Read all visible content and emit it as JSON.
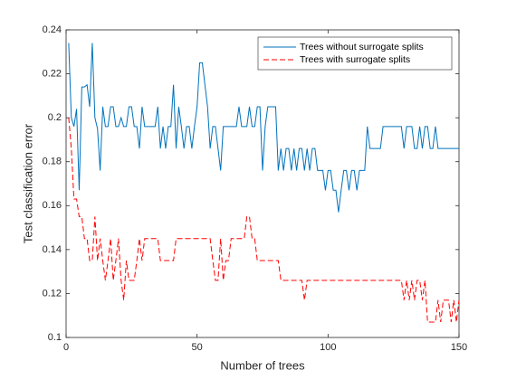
{
  "chart_data": {
    "type": "line",
    "xlabel": "Number of trees",
    "ylabel": "Test classification error",
    "x": [
      1,
      2,
      3,
      4,
      5,
      6,
      7,
      8,
      9,
      10,
      11,
      12,
      13,
      14,
      15,
      16,
      17,
      18,
      19,
      20,
      21,
      22,
      23,
      24,
      25,
      26,
      27,
      28,
      29,
      30,
      31,
      32,
      33,
      34,
      35,
      36,
      37,
      38,
      39,
      40,
      41,
      42,
      43,
      44,
      45,
      46,
      47,
      48,
      49,
      50,
      51,
      52,
      53,
      54,
      55,
      56,
      57,
      58,
      59,
      60,
      61,
      62,
      63,
      64,
      65,
      66,
      67,
      68,
      69,
      70,
      71,
      72,
      73,
      74,
      75,
      76,
      77,
      78,
      79,
      80,
      81,
      82,
      83,
      84,
      85,
      86,
      87,
      88,
      89,
      90,
      91,
      92,
      93,
      94,
      95,
      96,
      97,
      98,
      99,
      100,
      101,
      102,
      103,
      104,
      105,
      106,
      107,
      108,
      109,
      110,
      111,
      112,
      113,
      114,
      115,
      116,
      117,
      118,
      119,
      120,
      121,
      122,
      123,
      124,
      125,
      126,
      127,
      128,
      129,
      130,
      131,
      132,
      133,
      134,
      135,
      136,
      137,
      138,
      139,
      140,
      141,
      142,
      143,
      144,
      145,
      146,
      147,
      148,
      149,
      150
    ],
    "series": [
      {
        "name": "Trees without surrogate splits",
        "color": "#0072bd",
        "line_style": "solid",
        "values": [
          0.234,
          0.2,
          0.196,
          0.204,
          0.167,
          0.214,
          0.214,
          0.215,
          0.205,
          0.234,
          0.2,
          0.195,
          0.176,
          0.205,
          0.196,
          0.196,
          0.205,
          0.205,
          0.196,
          0.196,
          0.2,
          0.196,
          0.196,
          0.205,
          0.205,
          0.196,
          0.196,
          0.186,
          0.205,
          0.196,
          0.196,
          0.196,
          0.196,
          0.196,
          0.205,
          0.186,
          0.196,
          0.186,
          0.196,
          0.196,
          0.215,
          0.186,
          0.205,
          0.196,
          0.186,
          0.196,
          0.196,
          0.186,
          0.196,
          0.205,
          0.225,
          0.225,
          0.215,
          0.205,
          0.186,
          0.196,
          0.196,
          0.186,
          0.176,
          0.196,
          0.196,
          0.196,
          0.196,
          0.196,
          0.196,
          0.205,
          0.196,
          0.196,
          0.196,
          0.205,
          0.196,
          0.196,
          0.205,
          0.205,
          0.176,
          0.196,
          0.205,
          0.205,
          0.205,
          0.205,
          0.176,
          0.186,
          0.176,
          0.186,
          0.186,
          0.176,
          0.186,
          0.176,
          0.186,
          0.186,
          0.176,
          0.186,
          0.176,
          0.186,
          0.186,
          0.176,
          0.176,
          0.176,
          0.167,
          0.176,
          0.176,
          0.167,
          0.167,
          0.157,
          0.167,
          0.176,
          0.176,
          0.167,
          0.176,
          0.176,
          0.167,
          0.176,
          0.176,
          0.176,
          0.196,
          0.186,
          0.186,
          0.186,
          0.186,
          0.186,
          0.196,
          0.196,
          0.196,
          0.196,
          0.196,
          0.196,
          0.196,
          0.196,
          0.186,
          0.196,
          0.196,
          0.196,
          0.186,
          0.186,
          0.196,
          0.186,
          0.196,
          0.196,
          0.186,
          0.186,
          0.196,
          0.186,
          0.186,
          0.186,
          0.186,
          0.186,
          0.186,
          0.186,
          0.186,
          0.186
        ]
      },
      {
        "name": "Trees with surrogate splits",
        "color": "#ff0000",
        "line_style": "dashed",
        "values": [
          0.2,
          0.186,
          0.163,
          0.163,
          0.155,
          0.155,
          0.145,
          0.145,
          0.135,
          0.135,
          0.155,
          0.135,
          0.145,
          0.135,
          0.126,
          0.135,
          0.145,
          0.126,
          0.135,
          0.145,
          0.126,
          0.117,
          0.135,
          0.126,
          0.126,
          0.126,
          0.135,
          0.145,
          0.135,
          0.145,
          0.145,
          0.145,
          0.145,
          0.145,
          0.145,
          0.135,
          0.135,
          0.135,
          0.135,
          0.135,
          0.135,
          0.145,
          0.145,
          0.145,
          0.145,
          0.145,
          0.145,
          0.145,
          0.145,
          0.145,
          0.145,
          0.145,
          0.145,
          0.145,
          0.145,
          0.135,
          0.126,
          0.126,
          0.145,
          0.126,
          0.135,
          0.135,
          0.145,
          0.145,
          0.145,
          0.145,
          0.145,
          0.145,
          0.155,
          0.155,
          0.145,
          0.145,
          0.135,
          0.135,
          0.135,
          0.135,
          0.135,
          0.135,
          0.135,
          0.135,
          0.135,
          0.126,
          0.126,
          0.126,
          0.126,
          0.126,
          0.126,
          0.126,
          0.126,
          0.126,
          0.117,
          0.126,
          0.126,
          0.126,
          0.126,
          0.126,
          0.126,
          0.126,
          0.126,
          0.126,
          0.126,
          0.126,
          0.126,
          0.126,
          0.126,
          0.126,
          0.126,
          0.126,
          0.126,
          0.126,
          0.126,
          0.126,
          0.126,
          0.126,
          0.126,
          0.126,
          0.126,
          0.126,
          0.126,
          0.126,
          0.126,
          0.126,
          0.126,
          0.126,
          0.126,
          0.126,
          0.126,
          0.126,
          0.117,
          0.126,
          0.117,
          0.126,
          0.117,
          0.126,
          0.126,
          0.117,
          0.126,
          0.107,
          0.107,
          0.107,
          0.107,
          0.117,
          0.107,
          0.117,
          0.117,
          0.117,
          0.107,
          0.117,
          0.107,
          0.117
        ]
      }
    ],
    "xlim": [
      0,
      150
    ],
    "xticks": [
      0,
      50,
      100,
      150
    ],
    "ylim": [
      0.1,
      0.24
    ],
    "yticks": [
      0.1,
      0.12,
      0.14,
      0.16,
      0.18,
      0.2,
      0.22,
      0.24
    ],
    "grid": false,
    "legend": "northeast"
  }
}
